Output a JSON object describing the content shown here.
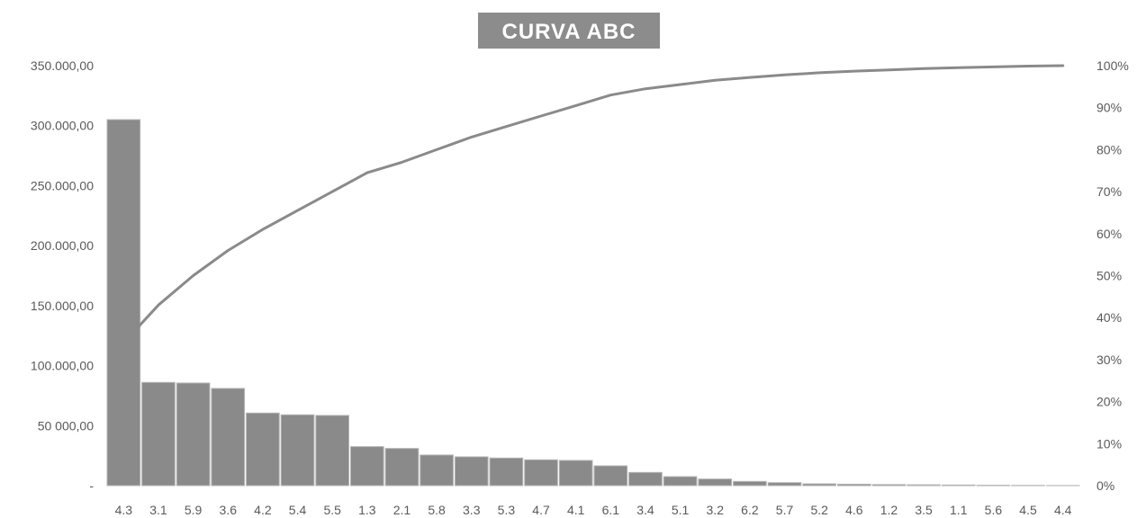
{
  "chart_data": {
    "type": "bar",
    "title": "CURVA ABC",
    "xlabel": "",
    "ylabel": "",
    "categories": [
      "4.3",
      "3.1",
      "5.9",
      "3.6",
      "4.2",
      "5.4",
      "5.5",
      "1.3",
      "2.1",
      "5.8",
      "3.3",
      "5.3",
      "4.7",
      "4.1",
      "6.1",
      "3.4",
      "5.1",
      "3.2",
      "6.2",
      "5.7",
      "5.2",
      "4.6",
      "1.2",
      "3.5",
      "1.1",
      "5.6",
      "4.5",
      "4.4"
    ],
    "series": [
      {
        "type": "bar",
        "axis": "left",
        "values": [
          305000,
          86000,
          85500,
          81000,
          60500,
          59000,
          58500,
          32500,
          31000,
          25500,
          24000,
          23000,
          21500,
          21000,
          16500,
          11000,
          7500,
          5500,
          3500,
          2500,
          1500,
          1200,
          900,
          700,
          500,
          300,
          200,
          100
        ]
      },
      {
        "type": "line",
        "axis": "right",
        "values": [
          0.34,
          0.43,
          0.5,
          0.56,
          0.61,
          0.655,
          0.7,
          0.745,
          0.77,
          0.8,
          0.83,
          0.855,
          0.88,
          0.905,
          0.93,
          0.945,
          0.955,
          0.965,
          0.972,
          0.978,
          0.983,
          0.987,
          0.99,
          0.993,
          0.995,
          0.997,
          0.999,
          1.0
        ]
      }
    ],
    "ylim": [
      0,
      350000
    ],
    "y2lim": [
      0,
      1
    ],
    "y_ticks": [
      {
        "value": 0,
        "label": "-"
      },
      {
        "value": 50000,
        "label": "50 000,00"
      },
      {
        "value": 100000,
        "label": "100.000,00"
      },
      {
        "value": 150000,
        "label": "150.000,00"
      },
      {
        "value": 200000,
        "label": "200.000,00"
      },
      {
        "value": 250000,
        "label": "250.000,00"
      },
      {
        "value": 300000,
        "label": "300.000,00"
      },
      {
        "value": 350000,
        "label": "350.000,00"
      }
    ],
    "y2_ticks": [
      {
        "value": 0,
        "label": "0%"
      },
      {
        "value": 0.1,
        "label": "10%"
      },
      {
        "value": 0.2,
        "label": "20%"
      },
      {
        "value": 0.3,
        "label": "30%"
      },
      {
        "value": 0.4,
        "label": "40%"
      },
      {
        "value": 0.5,
        "label": "50%"
      },
      {
        "value": 0.6,
        "label": "60%"
      },
      {
        "value": 0.7,
        "label": "70%"
      },
      {
        "value": 0.8,
        "label": "80%"
      },
      {
        "value": 0.9,
        "label": "90%"
      },
      {
        "value": 1.0,
        "label": "100%"
      }
    ],
    "grid": false,
    "legend": "none",
    "colors": {
      "bar": "#8a8a8a",
      "line": "#8a8a8a",
      "title_bg": "#8c8c8c"
    }
  }
}
